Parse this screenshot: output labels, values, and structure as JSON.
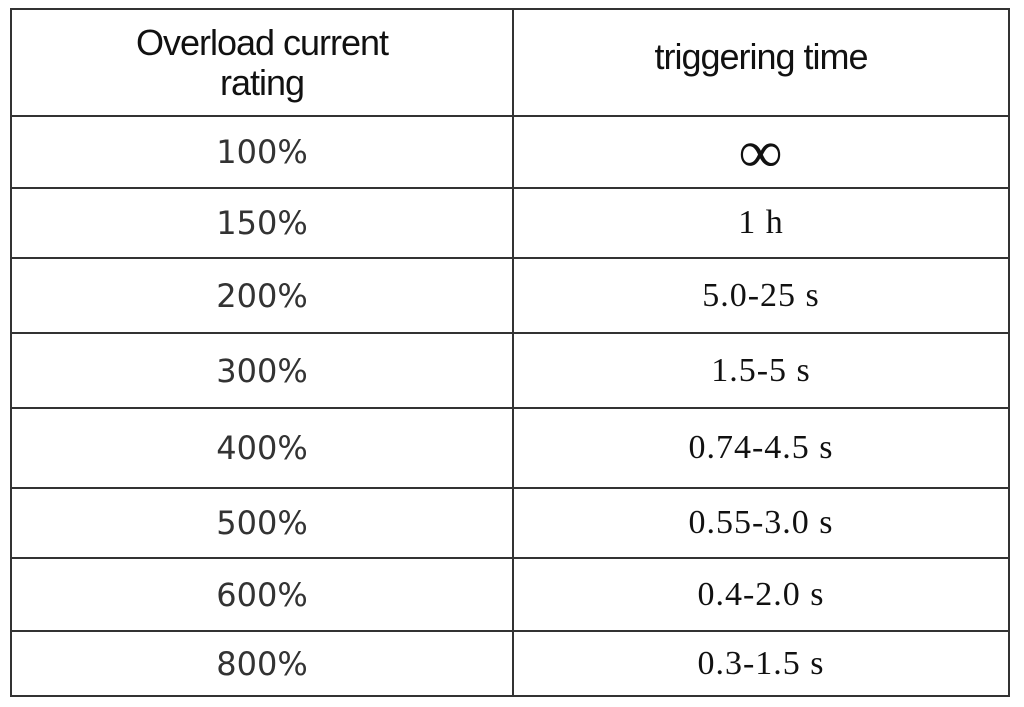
{
  "table": {
    "header": [
      "Overload current rating",
      "triggering time"
    ],
    "rows": [
      [
        "100%",
        "∞"
      ],
      [
        "150%",
        "1 h"
      ],
      [
        "200%",
        "5.0-25 s"
      ],
      [
        "300%",
        "1.5-5 s"
      ],
      [
        "400%",
        "0.74-4.5 s"
      ],
      [
        "500%",
        "0.55-3.0 s"
      ],
      [
        "600%",
        "0.4-2.0 s"
      ],
      [
        "800%",
        "0.3-1.5 s"
      ]
    ]
  }
}
